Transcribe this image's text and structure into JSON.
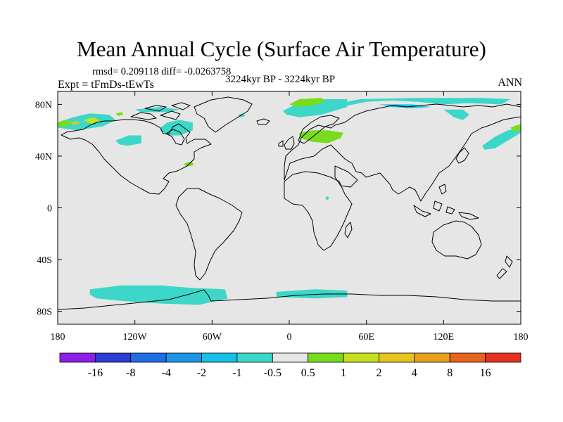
{
  "title": "Mean Annual Cycle (Surface Air Temperature)",
  "stats": "rmsd= 0.209118 diff= -0.0263758",
  "subtitle": "3224kyr BP - 3224kyr BP",
  "experiment": "Expt = tFmDs-tEwTs",
  "season": "ANN",
  "map": {
    "background_color": "#e6e6e6",
    "lon_range": [
      -180,
      180
    ],
    "lat_range": [
      -90,
      90
    ],
    "x_ticks": [
      {
        "lon": -180,
        "label": "180"
      },
      {
        "lon": -120,
        "label": "120W"
      },
      {
        "lon": -60,
        "label": "60W"
      },
      {
        "lon": 0,
        "label": "0"
      },
      {
        "lon": 60,
        "label": "60E"
      },
      {
        "lon": 120,
        "label": "120E"
      },
      {
        "lon": 180,
        "label": "180"
      }
    ],
    "y_ticks": [
      {
        "lat": 80,
        "label": "80N"
      },
      {
        "lat": 40,
        "label": "40N"
      },
      {
        "lat": 0,
        "label": "0"
      },
      {
        "lat": -40,
        "label": "40S"
      },
      {
        "lat": -80,
        "label": "80S"
      }
    ]
  },
  "colorbar": {
    "colors": [
      "#8c1ee6",
      "#2d3cd2",
      "#1e6ee6",
      "#1e96e6",
      "#16c0e6",
      "#3cd7c8",
      "#e6e6e6",
      "#78dc1e",
      "#c8e01e",
      "#e6c31e",
      "#e6a01e",
      "#e6641e",
      "#e6321e"
    ],
    "labels": [
      "-16",
      "-8",
      "-4",
      "-2",
      "-1",
      "-0.5",
      "0.5",
      "1",
      "2",
      "4",
      "8",
      "16"
    ]
  },
  "anomaly_regions": [
    {
      "name": "siberia-cyan",
      "color_index": 5,
      "pts": [
        [
          40,
          78
        ],
        [
          60,
          82
        ],
        [
          80,
          83
        ],
        [
          100,
          82
        ],
        [
          120,
          80
        ],
        [
          140,
          81
        ],
        [
          165,
          80
        ],
        [
          172,
          84
        ],
        [
          150,
          85
        ],
        [
          100,
          85
        ],
        [
          55,
          84
        ],
        [
          40,
          81
        ]
      ]
    },
    {
      "name": "siberia-blue",
      "color_index": 4,
      "pts": [
        [
          70,
          80
        ],
        [
          95,
          80
        ],
        [
          110,
          78
        ],
        [
          95,
          77
        ],
        [
          80,
          78
        ]
      ]
    },
    {
      "name": "siberia-lobe",
      "color_index": 5,
      "pts": [
        [
          120,
          76
        ],
        [
          128,
          70
        ],
        [
          135,
          68
        ],
        [
          140,
          72
        ],
        [
          135,
          76
        ]
      ]
    },
    {
      "name": "greenland-sea-cyan",
      "color_index": 5,
      "pts": [
        [
          -5,
          75
        ],
        [
          5,
          80
        ],
        [
          20,
          84
        ],
        [
          45,
          84
        ],
        [
          45,
          78
        ],
        [
          25,
          72
        ],
        [
          8,
          70
        ],
        [
          -2,
          72
        ]
      ]
    },
    {
      "name": "greenland-sea-green",
      "color_index": 7,
      "pts": [
        [
          0,
          80
        ],
        [
          8,
          84
        ],
        [
          25,
          85
        ],
        [
          28,
          82
        ],
        [
          18,
          79
        ],
        [
          6,
          78
        ]
      ]
    },
    {
      "name": "north-pacific-cyan",
      "color_index": 5,
      "pts": [
        [
          150,
          48
        ],
        [
          160,
          55
        ],
        [
          170,
          60
        ],
        [
          180,
          62
        ],
        [
          180,
          58
        ],
        [
          170,
          52
        ],
        [
          160,
          46
        ],
        [
          152,
          45
        ]
      ]
    },
    {
      "name": "north-pacific-green",
      "color_index": 7,
      "pts": [
        [
          172,
          62
        ],
        [
          180,
          65
        ],
        [
          180,
          60
        ],
        [
          174,
          59
        ]
      ]
    },
    {
      "name": "alaska-cyan",
      "color_index": 5,
      "pts": [
        [
          -180,
          66
        ],
        [
          -168,
          70
        ],
        [
          -155,
          73
        ],
        [
          -140,
          72
        ],
        [
          -135,
          68
        ],
        [
          -145,
          63
        ],
        [
          -165,
          60
        ],
        [
          -180,
          62
        ]
      ]
    },
    {
      "name": "alaska-green",
      "color_index": 7,
      "pts": [
        [
          -180,
          66
        ],
        [
          -175,
          68
        ],
        [
          -168,
          66
        ],
        [
          -173,
          63
        ],
        [
          -180,
          63
        ]
      ]
    },
    {
      "name": "alaska-yellow",
      "color_index": 8,
      "pts": [
        [
          -160,
          68
        ],
        [
          -152,
          70
        ],
        [
          -147,
          67
        ],
        [
          -154,
          65
        ]
      ]
    },
    {
      "name": "alaska-orange",
      "color_index": 9,
      "pts": [
        [
          -170,
          66
        ],
        [
          -164,
          67
        ],
        [
          -163,
          65
        ],
        [
          -168,
          64
        ]
      ]
    },
    {
      "name": "hudson-cyan",
      "color_index": 5,
      "pts": [
        [
          -100,
          62
        ],
        [
          -95,
          66
        ],
        [
          -85,
          68
        ],
        [
          -75,
          66
        ],
        [
          -75,
          60
        ],
        [
          -85,
          56
        ],
        [
          -92,
          56
        ],
        [
          -100,
          59
        ]
      ]
    },
    {
      "name": "canada-cyan",
      "color_index": 5,
      "pts": [
        [
          -135,
          52
        ],
        [
          -125,
          56
        ],
        [
          -115,
          56
        ],
        [
          -115,
          50
        ],
        [
          -125,
          48
        ],
        [
          -132,
          49
        ]
      ]
    },
    {
      "name": "arctic-canada-cyan",
      "color_index": 5,
      "pts": [
        [
          -120,
          76
        ],
        [
          -100,
          78
        ],
        [
          -85,
          76
        ],
        [
          -95,
          74
        ],
        [
          -115,
          74
        ]
      ]
    },
    {
      "name": "europe-green",
      "color_index": 7,
      "pts": [
        [
          8,
          58
        ],
        [
          18,
          60
        ],
        [
          30,
          60
        ],
        [
          42,
          58
        ],
        [
          40,
          54
        ],
        [
          30,
          50
        ],
        [
          18,
          51
        ],
        [
          8,
          54
        ]
      ]
    },
    {
      "name": "north-america-green",
      "color_index": 7,
      "pts": [
        [
          -82,
          34
        ],
        [
          -76,
          36
        ],
        [
          -74,
          33
        ],
        [
          -80,
          32
        ]
      ]
    },
    {
      "name": "atlantic-dot-cyan",
      "color_index": 5,
      "pts": [
        [
          -40,
          72
        ],
        [
          -36,
          73
        ],
        [
          -34,
          71
        ],
        [
          -38,
          70
        ]
      ]
    },
    {
      "name": "pacific-dot-green",
      "color_index": 7,
      "pts": [
        [
          -135,
          73
        ],
        [
          -130,
          74
        ],
        [
          -129,
          72
        ],
        [
          -133,
          71
        ]
      ]
    },
    {
      "name": "africa-dot-cyan",
      "color_index": 5,
      "pts": [
        [
          28,
          8
        ],
        [
          30,
          9
        ],
        [
          31,
          7
        ],
        [
          29,
          6
        ]
      ]
    },
    {
      "name": "southern-ocean-pacific-cyan",
      "color_index": 5,
      "pts": [
        [
          -155,
          -63
        ],
        [
          -130,
          -60
        ],
        [
          -100,
          -60
        ],
        [
          -75,
          -62
        ],
        [
          -50,
          -63
        ],
        [
          -48,
          -70
        ],
        [
          -70,
          -75
        ],
        [
          -100,
          -74
        ],
        [
          -130,
          -72
        ],
        [
          -150,
          -70
        ],
        [
          -155,
          -67
        ]
      ]
    },
    {
      "name": "southern-ocean-atlantic-cyan",
      "color_index": 5,
      "pts": [
        [
          -10,
          -65
        ],
        [
          20,
          -63
        ],
        [
          45,
          -64
        ],
        [
          45,
          -69
        ],
        [
          20,
          -70
        ],
        [
          -10,
          -69
        ]
      ]
    }
  ]
}
